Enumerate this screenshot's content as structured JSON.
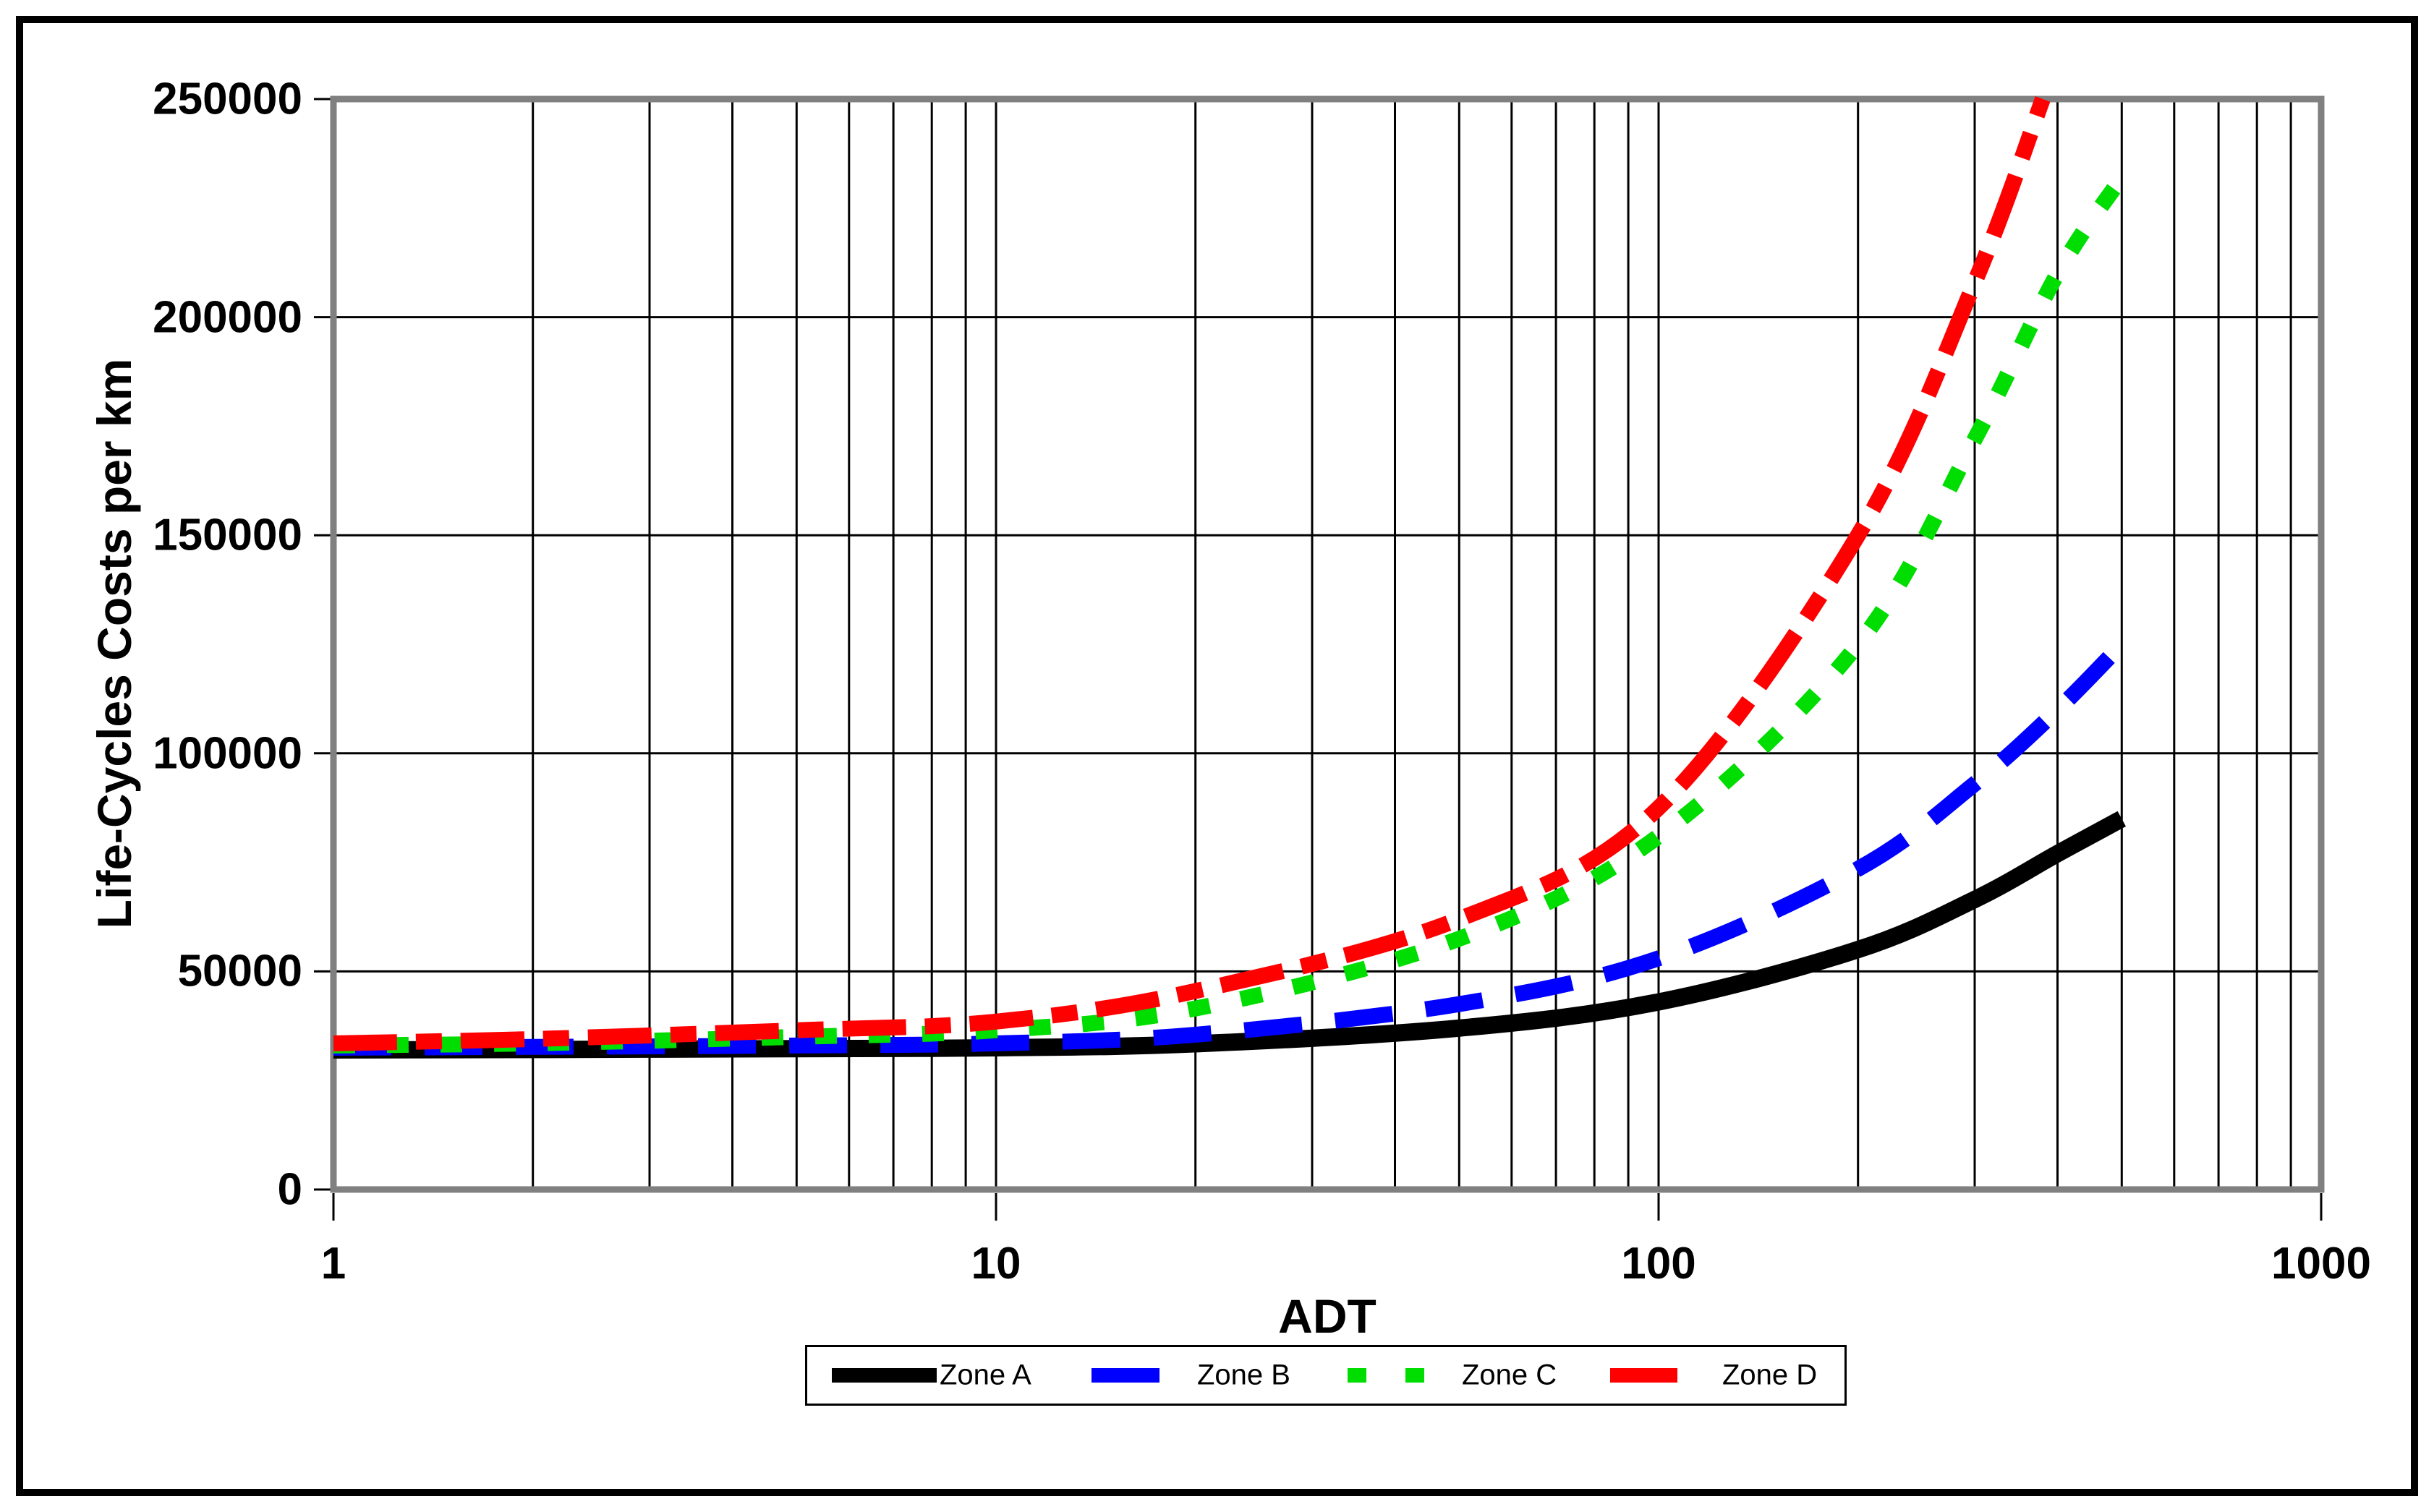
{
  "figure": {
    "background": "#FFFFFF",
    "border_color": "#000000",
    "frame_color": "#808080",
    "gridline_color": "#000000"
  },
  "axes": {
    "x": {
      "title": "ADT",
      "scale": "log",
      "tick_labels": [
        "1",
        "10",
        "100",
        "1000"
      ],
      "tick_values": [
        1,
        10,
        100,
        1000
      ]
    },
    "y": {
      "title": "Life-Cycles Costs per km",
      "scale": "linear",
      "tick_labels": [
        "0",
        "50000",
        "100000",
        "150000",
        "200000",
        "250000"
      ],
      "tick_values": [
        0,
        50000,
        100000,
        150000,
        200000,
        250000
      ]
    }
  },
  "legend": {
    "items": [
      {
        "label": "Zone A",
        "color": "#000000",
        "style": "solid"
      },
      {
        "label": "Zone B",
        "color": "#0000FF",
        "style": "long-dash"
      },
      {
        "label": "Zone C",
        "color": "#00DD00",
        "style": "short-dash"
      },
      {
        "label": "Zone D",
        "color": "#FF0000",
        "style": "dash-dot"
      }
    ]
  },
  "chart_data": {
    "type": "line",
    "title": "",
    "xlabel": "ADT",
    "ylabel": "Life-Cycles Costs per km",
    "x_scale": "log",
    "xlim": [
      1,
      1000
    ],
    "ylim": [
      0,
      250000
    ],
    "y_tick_step": 50000,
    "grid": true,
    "legend_position": "bottom",
    "series": [
      {
        "name": "Zone A",
        "color": "#000000",
        "line_style": "solid",
        "points": [
          [
            1,
            32000
          ],
          [
            2,
            32100
          ],
          [
            5,
            32300
          ],
          [
            10,
            32500
          ],
          [
            20,
            33400
          ],
          [
            50,
            37000
          ],
          [
            100,
            43000
          ],
          [
            200,
            55000
          ],
          [
            300,
            66500
          ],
          [
            400,
            77000
          ],
          [
            500,
            85000
          ]
        ]
      },
      {
        "name": "Zone B",
        "color": "#0000FF",
        "line_style": "long-dash",
        "points": [
          [
            1,
            32500
          ],
          [
            2,
            32700
          ],
          [
            5,
            33000
          ],
          [
            10,
            33500
          ],
          [
            20,
            35500
          ],
          [
            50,
            42500
          ],
          [
            100,
            53000
          ],
          [
            200,
            73500
          ],
          [
            300,
            93000
          ],
          [
            400,
            110000
          ],
          [
            500,
            125000
          ]
        ]
      },
      {
        "name": "Zone C",
        "color": "#00DD00",
        "line_style": "short-dash",
        "points": [
          [
            1,
            33000
          ],
          [
            2,
            33500
          ],
          [
            5,
            35000
          ],
          [
            10,
            36500
          ],
          [
            20,
            41500
          ],
          [
            50,
            57500
          ],
          [
            100,
            81000
          ],
          [
            200,
            125000
          ],
          [
            300,
            172000
          ],
          [
            400,
            210000
          ],
          [
            500,
            232000
          ]
        ]
      },
      {
        "name": "Zone D",
        "color": "#FF0000",
        "line_style": "dash-dot",
        "points": [
          [
            1,
            33500
          ],
          [
            2,
            34500
          ],
          [
            5,
            36500
          ],
          [
            10,
            38500
          ],
          [
            20,
            45500
          ],
          [
            50,
            62000
          ],
          [
            100,
            87500
          ],
          [
            200,
            150000
          ],
          [
            300,
            208000
          ],
          [
            380,
            250000
          ]
        ]
      }
    ]
  }
}
